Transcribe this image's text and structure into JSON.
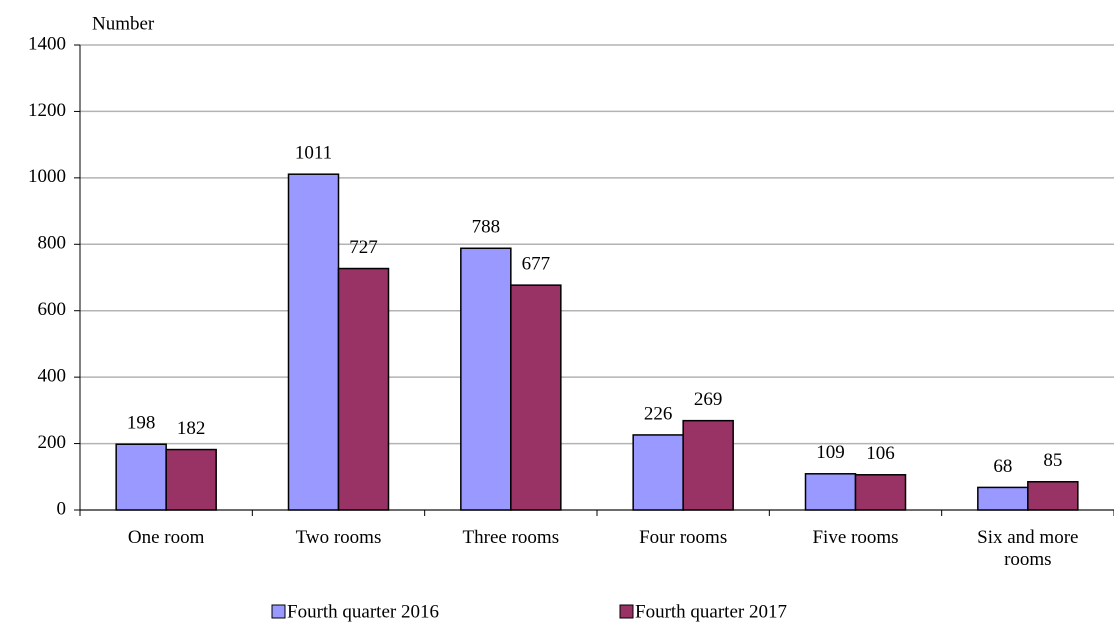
{
  "chart_data": {
    "type": "bar",
    "y_label": "Number",
    "categories": [
      "One room",
      "Two rooms",
      "Three rooms",
      "Four rooms",
      "Five rooms",
      "Six and more rooms"
    ],
    "series": [
      {
        "name": "Fourth quarter 2016",
        "color": "#9999ff",
        "values": [
          198,
          1011,
          788,
          226,
          109,
          68
        ]
      },
      {
        "name": "Fourth quarter 2017",
        "color": "#993366",
        "values": [
          182,
          727,
          677,
          269,
          106,
          85
        ]
      }
    ],
    "ylim": [
      0,
      1400
    ],
    "yticks": [
      0,
      200,
      400,
      600,
      800,
      1000,
      1200,
      1400
    ],
    "grid": true,
    "legend": "bottom"
  }
}
